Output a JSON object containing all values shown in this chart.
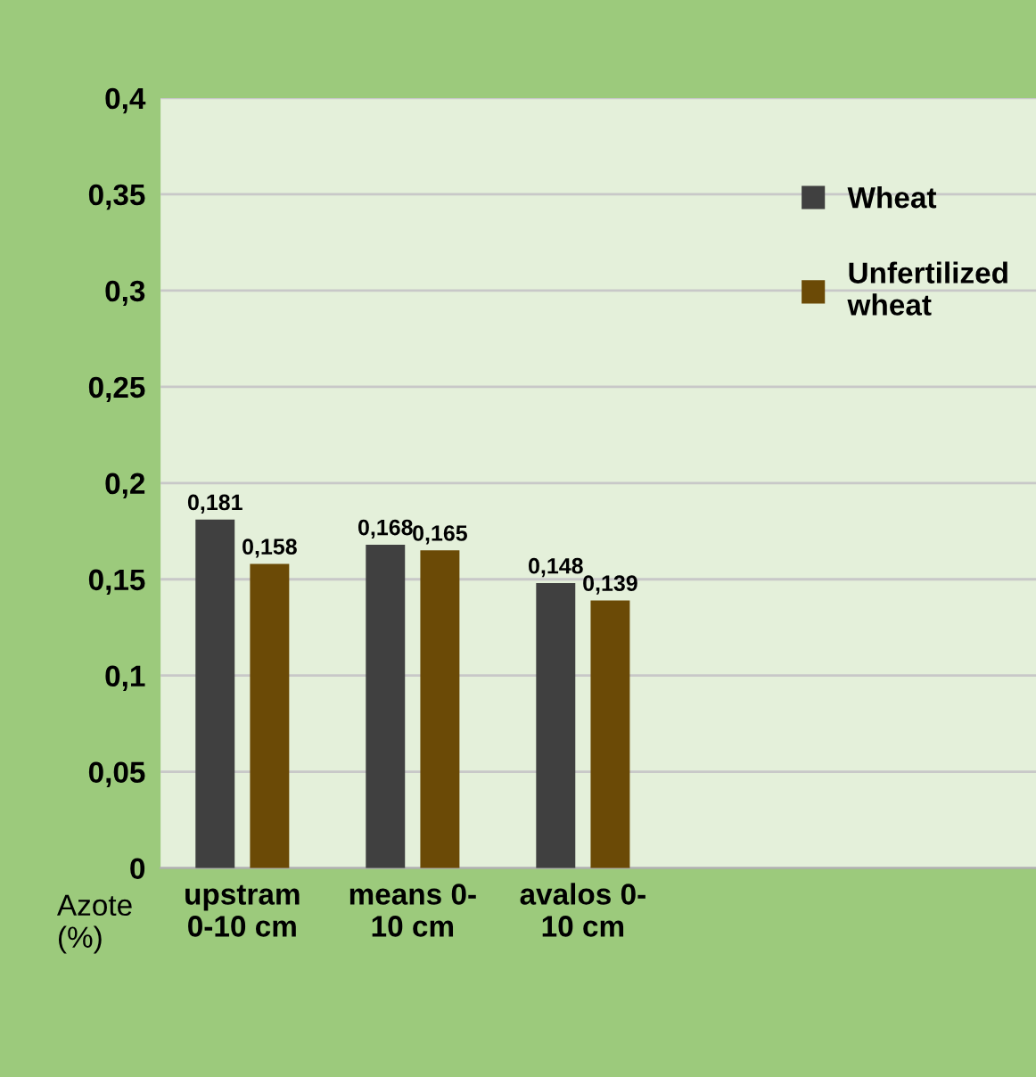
{
  "chart_data": {
    "type": "bar",
    "ylabel": "Azote\n(%)",
    "categories": [
      "upstram\n0-10 cm",
      "means 0-\n10 cm",
      "avalos 0-\n10 cm"
    ],
    "series": [
      {
        "name": "Wheat",
        "color": "#404040",
        "values": [
          0.181,
          0.168,
          0.148
        ],
        "value_labels": [
          "0,181",
          "0,168",
          "0,148"
        ]
      },
      {
        "name": "Unfertilized\nwheat",
        "color": "#6b4a06",
        "values": [
          0.158,
          0.165,
          0.139
        ],
        "value_labels": [
          "0,158",
          "0,165",
          "0,139"
        ]
      }
    ],
    "ylim": [
      0,
      0.4
    ],
    "yticks": [
      0,
      {
        "value": 0.05,
        "label": "0,05"
      },
      {
        "value": 0.1,
        "label": "0,1"
      },
      {
        "value": 0.15,
        "label": "0,15"
      },
      {
        "value": 0.2,
        "label": "0,2"
      },
      {
        "value": 0.25,
        "label": "0,25"
      },
      {
        "value": 0.3,
        "label": "0,3"
      },
      {
        "value": 0.35,
        "label": "0,35"
      },
      {
        "value": 0.4,
        "label": "0,4"
      }
    ],
    "grid": "y",
    "legend": "top right"
  }
}
